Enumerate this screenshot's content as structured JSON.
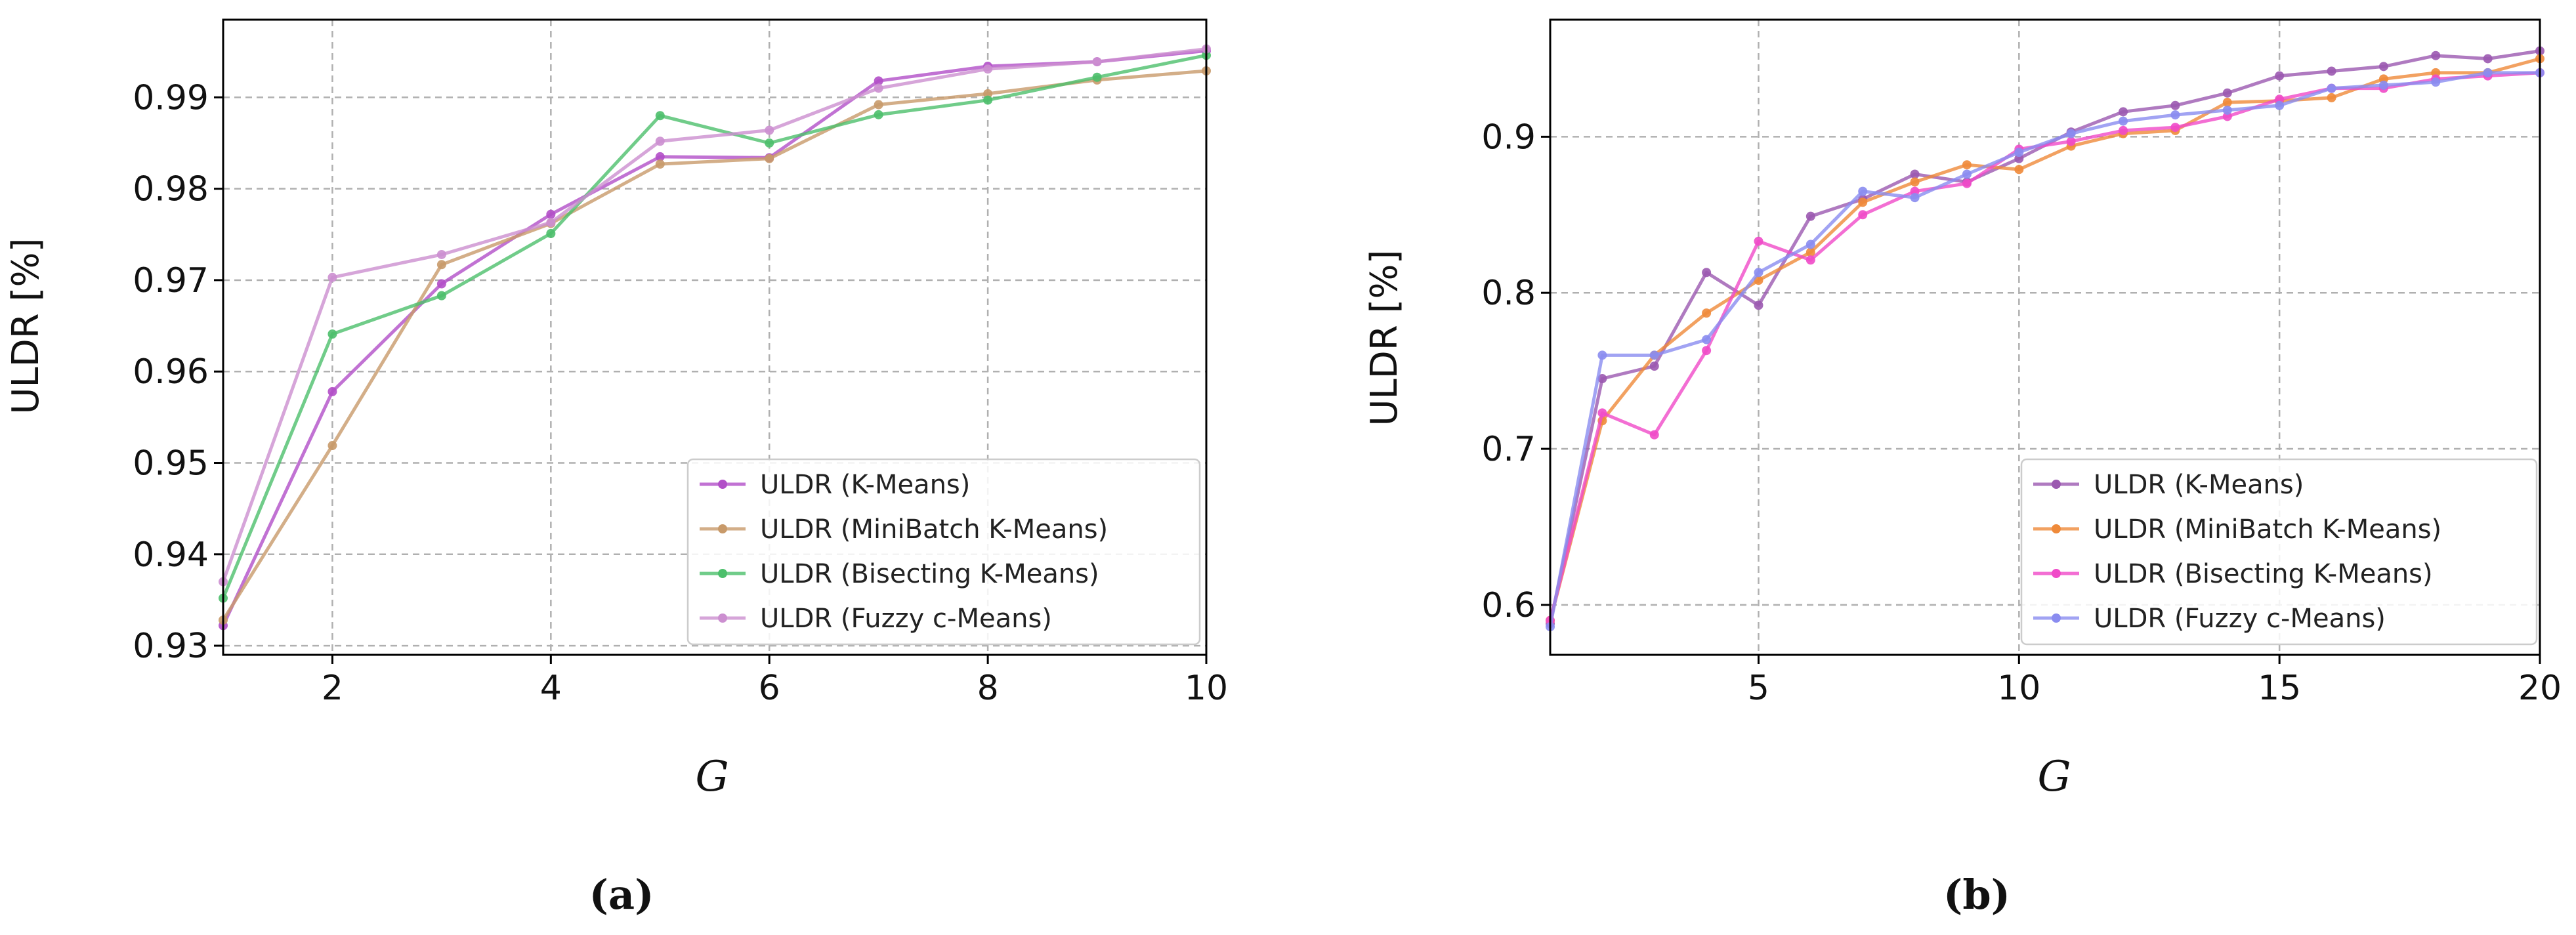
{
  "chart_data": [
    {
      "type": "line",
      "caption": "(a)",
      "xlabel": "G",
      "ylabel": "ULDR [%]",
      "xlim": [
        1,
        10
      ],
      "ylim": [
        0.929,
        0.9985
      ],
      "xticks": [
        2,
        4,
        6,
        8,
        10
      ],
      "yticks": [
        0.93,
        0.94,
        0.95,
        0.96,
        0.97,
        0.98,
        0.99
      ],
      "ytick_labels": [
        "0.93",
        "0.94",
        "0.95",
        "0.96",
        "0.97",
        "0.98",
        "0.99"
      ],
      "grid": true,
      "legend_position": "bottom-right",
      "x": [
        1,
        2,
        3,
        4,
        5,
        6,
        7,
        8,
        9,
        10
      ],
      "series": [
        {
          "name": "ULDR (K-Means)",
          "color": "#b24fc8",
          "values": [
            0.9322,
            0.9578,
            0.9696,
            0.9772,
            0.9835,
            0.9834,
            0.9918,
            0.9934,
            0.9939,
            0.9951
          ]
        },
        {
          "name": "ULDR (MiniBatch K-Means)",
          "color": "#c89a6a",
          "values": [
            0.9328,
            0.9519,
            0.9717,
            0.9762,
            0.9827,
            0.9833,
            0.9892,
            0.9904,
            0.9919,
            0.9929
          ]
        },
        {
          "name": "ULDR (Bisecting K-Means)",
          "color": "#4cbf6b",
          "values": [
            0.9352,
            0.9641,
            0.9683,
            0.9751,
            0.988,
            0.985,
            0.9881,
            0.9897,
            0.9922,
            0.9946
          ]
        },
        {
          "name": "ULDR (Fuzzy c-Means)",
          "color": "#cc8fd0",
          "values": [
            0.937,
            0.9703,
            0.9728,
            0.9763,
            0.9852,
            0.9864,
            0.991,
            0.9931,
            0.9939,
            0.9953
          ]
        }
      ]
    },
    {
      "type": "line",
      "caption": "(b)",
      "xlabel": "G",
      "ylabel": "ULDR [%]",
      "xlim": [
        1,
        20
      ],
      "ylim": [
        0.568,
        0.975
      ],
      "xticks": [
        5,
        10,
        15,
        20
      ],
      "yticks": [
        0.6,
        0.7,
        0.8,
        0.9
      ],
      "ytick_labels": [
        "0.6",
        "0.7",
        "0.8",
        "0.9"
      ],
      "grid": true,
      "legend_position": "bottom-right",
      "x": [
        1,
        2,
        3,
        4,
        5,
        6,
        7,
        8,
        9,
        10,
        11,
        12,
        13,
        14,
        15,
        16,
        17,
        18,
        19,
        20
      ],
      "series": [
        {
          "name": "ULDR (K-Means)",
          "color": "#9b59b0",
          "values": [
            0.588,
            0.745,
            0.753,
            0.813,
            0.792,
            0.849,
            0.86,
            0.876,
            0.871,
            0.886,
            0.903,
            0.916,
            0.92,
            0.928,
            0.939,
            0.942,
            0.945,
            0.952,
            0.95,
            0.955
          ]
        },
        {
          "name": "ULDR (MiniBatch K-Means)",
          "color": "#ef8a3a",
          "values": [
            0.59,
            0.718,
            0.76,
            0.787,
            0.808,
            0.826,
            0.858,
            0.871,
            0.882,
            0.879,
            0.894,
            0.902,
            0.904,
            0.922,
            0.923,
            0.925,
            0.937,
            0.941,
            0.941,
            0.95
          ]
        },
        {
          "name": "ULDR (Bisecting K-Means)",
          "color": "#f04ac8",
          "values": [
            0.59,
            0.723,
            0.709,
            0.763,
            0.833,
            0.821,
            0.85,
            0.865,
            0.87,
            0.892,
            0.897,
            0.904,
            0.906,
            0.913,
            0.924,
            0.931,
            0.931,
            0.937,
            0.939,
            0.941
          ]
        },
        {
          "name": "ULDR (Fuzzy c-Means)",
          "color": "#8a8cf0",
          "values": [
            0.586,
            0.76,
            0.76,
            0.77,
            0.813,
            0.831,
            0.865,
            0.861,
            0.876,
            0.89,
            0.902,
            0.91,
            0.914,
            0.917,
            0.92,
            0.931,
            0.933,
            0.935,
            0.941,
            0.941
          ]
        }
      ]
    }
  ]
}
